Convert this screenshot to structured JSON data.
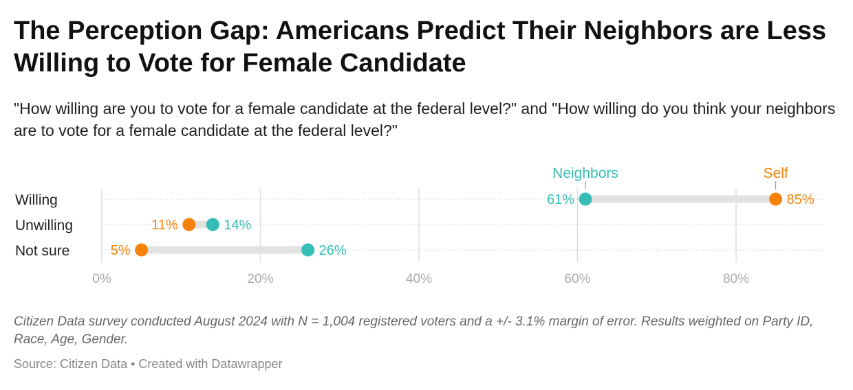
{
  "title": "The Perception Gap: Americans Predict Their Neighbors are Less Willing to Vote for Female Candidate",
  "subtitle": "\"How willing are you to vote for a female candidate at the federal level?\" and \"How willing do you think your neighbors are to vote for a female candidate at the federal level?\"",
  "notes": "Citizen Data survey conducted August 2024 with N = 1,004 registered voters and a +/- 3.1% margin of error. Results weighted on Party ID, Race, Age, Gender.",
  "source": "Source: Citizen Data • Created with Datawrapper",
  "chart_data": {
    "type": "range-dot",
    "categories": [
      "Willing",
      "Unwilling",
      "Not sure"
    ],
    "series": [
      {
        "name": "Neighbors",
        "color": "#35bdb6",
        "values": [
          61,
          14,
          26
        ]
      },
      {
        "name": "Self",
        "color": "#f5820b",
        "values": [
          85,
          11,
          5
        ]
      }
    ],
    "xlim": [
      0,
      90
    ],
    "xticks": [
      0,
      20,
      40,
      60,
      80
    ],
    "xtick_labels": [
      "0%",
      "20%",
      "40%",
      "60%",
      "80%"
    ],
    "value_suffix": "%",
    "legend_placement": "inline-top"
  }
}
